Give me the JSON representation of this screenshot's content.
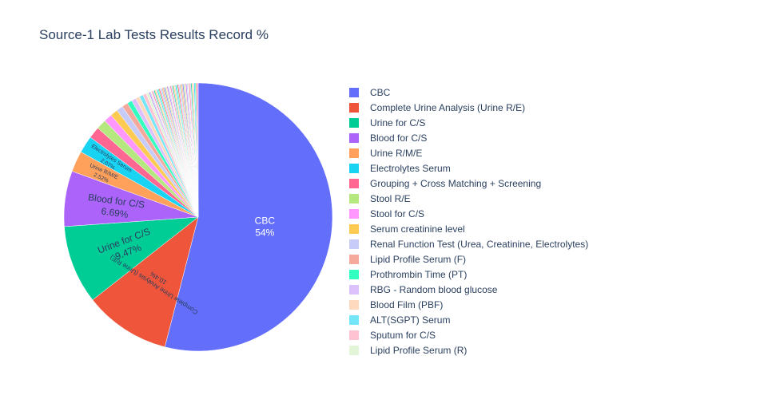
{
  "chart_data": {
    "type": "pie",
    "title": "Source-1 Lab Tests Results Record %",
    "legend_position": "right",
    "direction": "clockwise",
    "labels": [
      "CBC",
      "Complete Urine Analysis (Urine R/E)",
      "Urine for C/S",
      "Blood for C/S",
      "Urine R/M/E",
      "Electrolytes Serum",
      "Grouping + Cross Matching + Screening",
      "Stool R/E",
      "Stool for C/S",
      "Serum creatinine level",
      "Renal Function Test (Urea, Creatinine, Electrolytes)",
      "Lipid Profile Serum (F)",
      "Prothrombin Time (PT)",
      "RBG - Random blood glucose",
      "Blood Film (PBF)",
      "ALT(SGPT) Serum",
      "Sputum for C/S",
      "Lipid Profile Serum (R)"
    ],
    "values": [
      54,
      10.4,
      9.47,
      6.69,
      2.52,
      2.07,
      1.4,
      1.2,
      1.0,
      0.9,
      0.8,
      0.7,
      0.6,
      0.55,
      0.5,
      0.45,
      0.4,
      0.35
    ],
    "colors": [
      "#636efa",
      "#EF553B",
      "#00cc96",
      "#ab63fa",
      "#FFA15A",
      "#19d3f3",
      "#FF6692",
      "#B6E880",
      "#FF97FF",
      "#FECB52",
      "#c6cbf7",
      "#f4a99c",
      "#33ffc0",
      "#ddc1fd",
      "#ffd9bd",
      "#75e5f8",
      "#ffc2d3",
      "#e2f5d8"
    ],
    "slice_labels": [
      {
        "name": "CBC",
        "pct": "54%"
      },
      {
        "name": "Complete Urine Analysis (Urine R/E)",
        "pct": "10.4%"
      },
      {
        "name": "Urine for C/S",
        "pct": "9.47%"
      },
      {
        "name": "Blood for C/S",
        "pct": "6.69%"
      },
      {
        "name": "Urine R/M/E",
        "pct": "2.52%"
      },
      {
        "name": "Electrolytes Serum",
        "pct": "2.07%"
      }
    ]
  }
}
